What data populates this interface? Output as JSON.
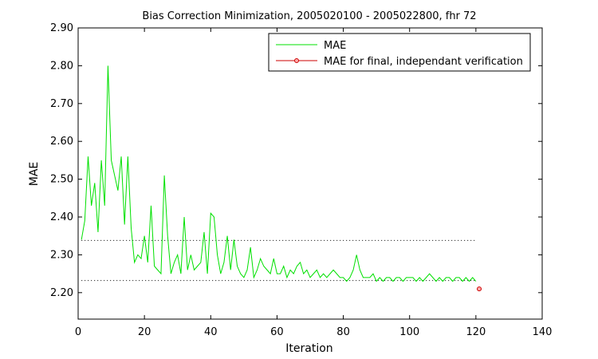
{
  "chart_data": {
    "type": "line",
    "title": "Bias Correction Minimization, 2005020100 - 2005022800, fhr 72",
    "xlabel": "Iteration",
    "ylabel": "MAE",
    "xlim": [
      0,
      140
    ],
    "ylim": [
      2.13,
      2.9
    ],
    "xticks": [
      0,
      20,
      40,
      60,
      80,
      100,
      120,
      140
    ],
    "yticks": [
      2.2,
      2.3,
      2.4,
      2.5,
      2.6,
      2.7,
      2.8,
      2.9
    ],
    "x_tick_labels": [
      "0",
      "20",
      "40",
      "60",
      "80",
      "100",
      "120",
      "140"
    ],
    "y_tick_labels": [
      "2.20",
      "2.30",
      "2.40",
      "2.50",
      "2.60",
      "2.70",
      "2.80",
      "2.90"
    ],
    "grid": false,
    "legend_position": "top-right",
    "reference_lines": [
      {
        "y": 2.338,
        "x_range": [
          1,
          120
        ],
        "style": "dotted",
        "color": "#000000"
      },
      {
        "y": 2.232,
        "x_range": [
          1,
          120
        ],
        "style": "dotted",
        "color": "#000000"
      }
    ],
    "series": [
      {
        "name": "MAE",
        "color": "#00e000",
        "marker": "none",
        "x": [
          1,
          2,
          3,
          4,
          5,
          6,
          7,
          8,
          9,
          10,
          11,
          12,
          13,
          14,
          15,
          16,
          17,
          18,
          19,
          20,
          21,
          22,
          23,
          24,
          25,
          26,
          27,
          28,
          29,
          30,
          31,
          32,
          33,
          34,
          35,
          36,
          37,
          38,
          39,
          40,
          41,
          42,
          43,
          44,
          45,
          46,
          47,
          48,
          49,
          50,
          51,
          52,
          53,
          54,
          55,
          56,
          57,
          58,
          59,
          60,
          61,
          62,
          63,
          64,
          65,
          66,
          67,
          68,
          69,
          70,
          71,
          72,
          73,
          74,
          75,
          76,
          77,
          78,
          79,
          80,
          81,
          82,
          83,
          84,
          85,
          86,
          87,
          88,
          89,
          90,
          91,
          92,
          93,
          94,
          95,
          96,
          97,
          98,
          99,
          100,
          101,
          102,
          103,
          104,
          105,
          106,
          107,
          108,
          109,
          110,
          111,
          112,
          113,
          114,
          115,
          116,
          117,
          118,
          119,
          120
        ],
        "values": [
          2.34,
          2.39,
          2.56,
          2.43,
          2.49,
          2.36,
          2.55,
          2.43,
          2.8,
          2.55,
          2.51,
          2.47,
          2.56,
          2.38,
          2.56,
          2.37,
          2.28,
          2.3,
          2.29,
          2.35,
          2.28,
          2.43,
          2.27,
          2.26,
          2.25,
          2.51,
          2.35,
          2.25,
          2.28,
          2.3,
          2.25,
          2.4,
          2.26,
          2.3,
          2.26,
          2.27,
          2.28,
          2.36,
          2.25,
          2.41,
          2.4,
          2.3,
          2.25,
          2.28,
          2.35,
          2.26,
          2.34,
          2.27,
          2.25,
          2.24,
          2.26,
          2.32,
          2.24,
          2.26,
          2.29,
          2.27,
          2.26,
          2.25,
          2.29,
          2.25,
          2.25,
          2.27,
          2.24,
          2.26,
          2.25,
          2.27,
          2.28,
          2.25,
          2.26,
          2.24,
          2.25,
          2.26,
          2.24,
          2.25,
          2.24,
          2.25,
          2.26,
          2.25,
          2.24,
          2.24,
          2.23,
          2.24,
          2.26,
          2.3,
          2.26,
          2.24,
          2.24,
          2.24,
          2.25,
          2.23,
          2.24,
          2.23,
          2.24,
          2.24,
          2.23,
          2.24,
          2.24,
          2.23,
          2.24,
          2.24,
          2.24,
          2.23,
          2.24,
          2.23,
          2.24,
          2.25,
          2.24,
          2.23,
          2.24,
          2.23,
          2.24,
          2.24,
          2.23,
          2.24,
          2.24,
          2.23,
          2.24,
          2.23,
          2.24,
          2.23
        ]
      },
      {
        "name": "MAE for final, independant verification",
        "color": "#cc0000",
        "marker": "circle",
        "x": [
          121
        ],
        "values": [
          2.21
        ]
      }
    ]
  }
}
